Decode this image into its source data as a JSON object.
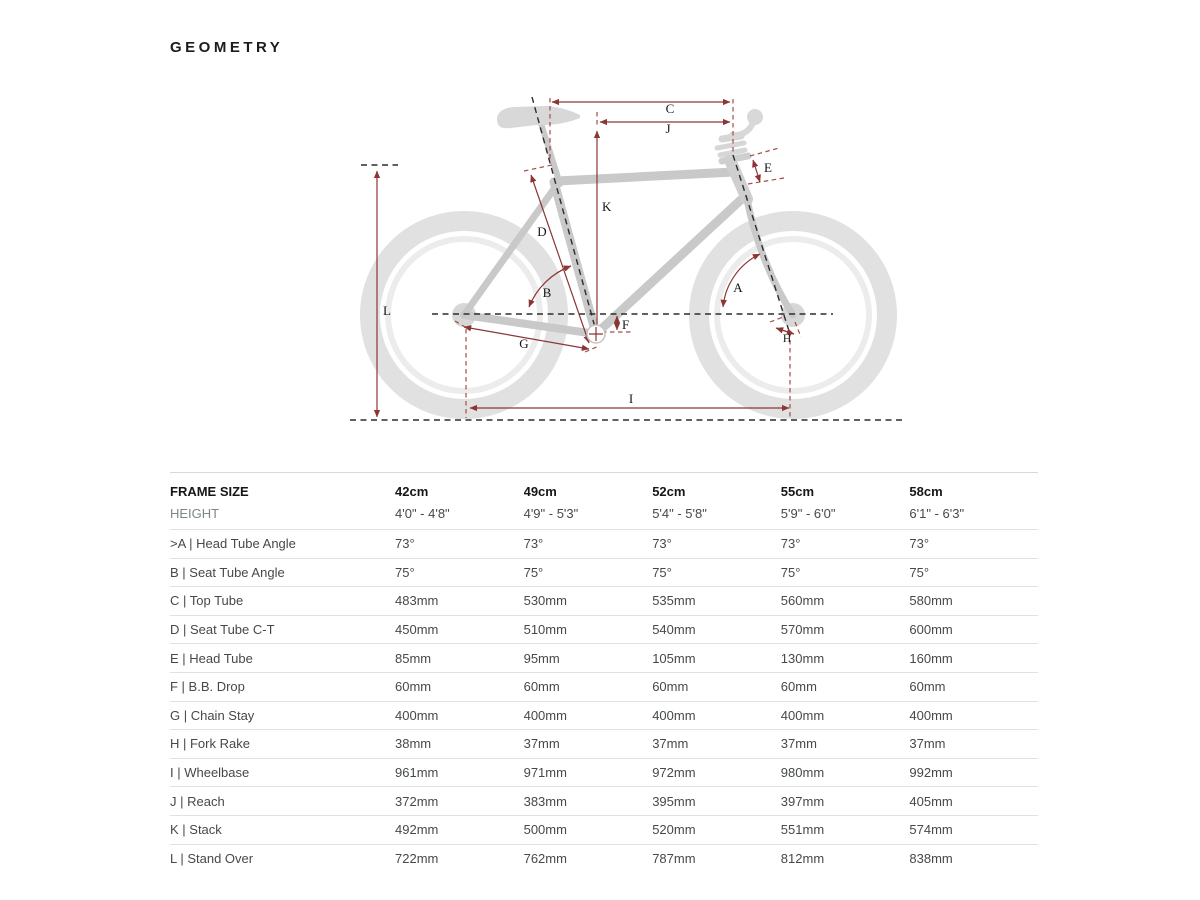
{
  "title": "GEOMETRY",
  "diagram": {
    "labels": {
      "a": "A",
      "b": "B",
      "c": "C",
      "d": "D",
      "e": "E",
      "f": "F",
      "g": "G",
      "h": "H",
      "i": "I",
      "j": "J",
      "k": "K",
      "l": "L"
    }
  },
  "table": {
    "header": {
      "frame_size": "FRAME SIZE",
      "height": "HEIGHT",
      "sizes": [
        "42cm",
        "49cm",
        "52cm",
        "55cm",
        "58cm"
      ],
      "heights": [
        "4'0\" - 4'8\"",
        "4'9\" - 5'3\"",
        "5'4\" - 5'8\"",
        "5'9\" - 6'0\"",
        "6'1\" - 6'3\""
      ]
    },
    "rows": [
      {
        "label": ">A | Head Tube Angle",
        "values": [
          "73°",
          "73°",
          "73°",
          "73°",
          "73°"
        ]
      },
      {
        "label": "B | Seat Tube Angle",
        "values": [
          "75°",
          "75°",
          "75°",
          "75°",
          "75°"
        ]
      },
      {
        "label": "C | Top Tube",
        "values": [
          "483mm",
          "530mm",
          "535mm",
          "560mm",
          "580mm"
        ]
      },
      {
        "label": "D | Seat Tube C-T",
        "values": [
          "450mm",
          "510mm",
          "540mm",
          "570mm",
          "600mm"
        ]
      },
      {
        "label": "E | Head Tube",
        "values": [
          "85mm",
          "95mm",
          "105mm",
          "130mm",
          "160mm"
        ]
      },
      {
        "label": "F | B.B. Drop",
        "values": [
          "60mm",
          "60mm",
          "60mm",
          "60mm",
          "60mm"
        ]
      },
      {
        "label": "G | Chain Stay",
        "values": [
          "400mm",
          "400mm",
          "400mm",
          "400mm",
          "400mm"
        ]
      },
      {
        "label": "H | Fork Rake",
        "values": [
          "38mm",
          "37mm",
          "37mm",
          "37mm",
          "37mm"
        ]
      },
      {
        "label": "I | Wheelbase",
        "values": [
          "961mm",
          "971mm",
          "972mm",
          "980mm",
          "992mm"
        ]
      },
      {
        "label": "J | Reach",
        "values": [
          "372mm",
          "383mm",
          "395mm",
          "397mm",
          "405mm"
        ]
      },
      {
        "label": "K | Stack",
        "values": [
          "492mm",
          "500mm",
          "520mm",
          "551mm",
          "574mm"
        ]
      },
      {
        "label": "L | Stand Over",
        "values": [
          "722mm",
          "762mm",
          "787mm",
          "812mm",
          "838mm"
        ]
      }
    ]
  }
}
